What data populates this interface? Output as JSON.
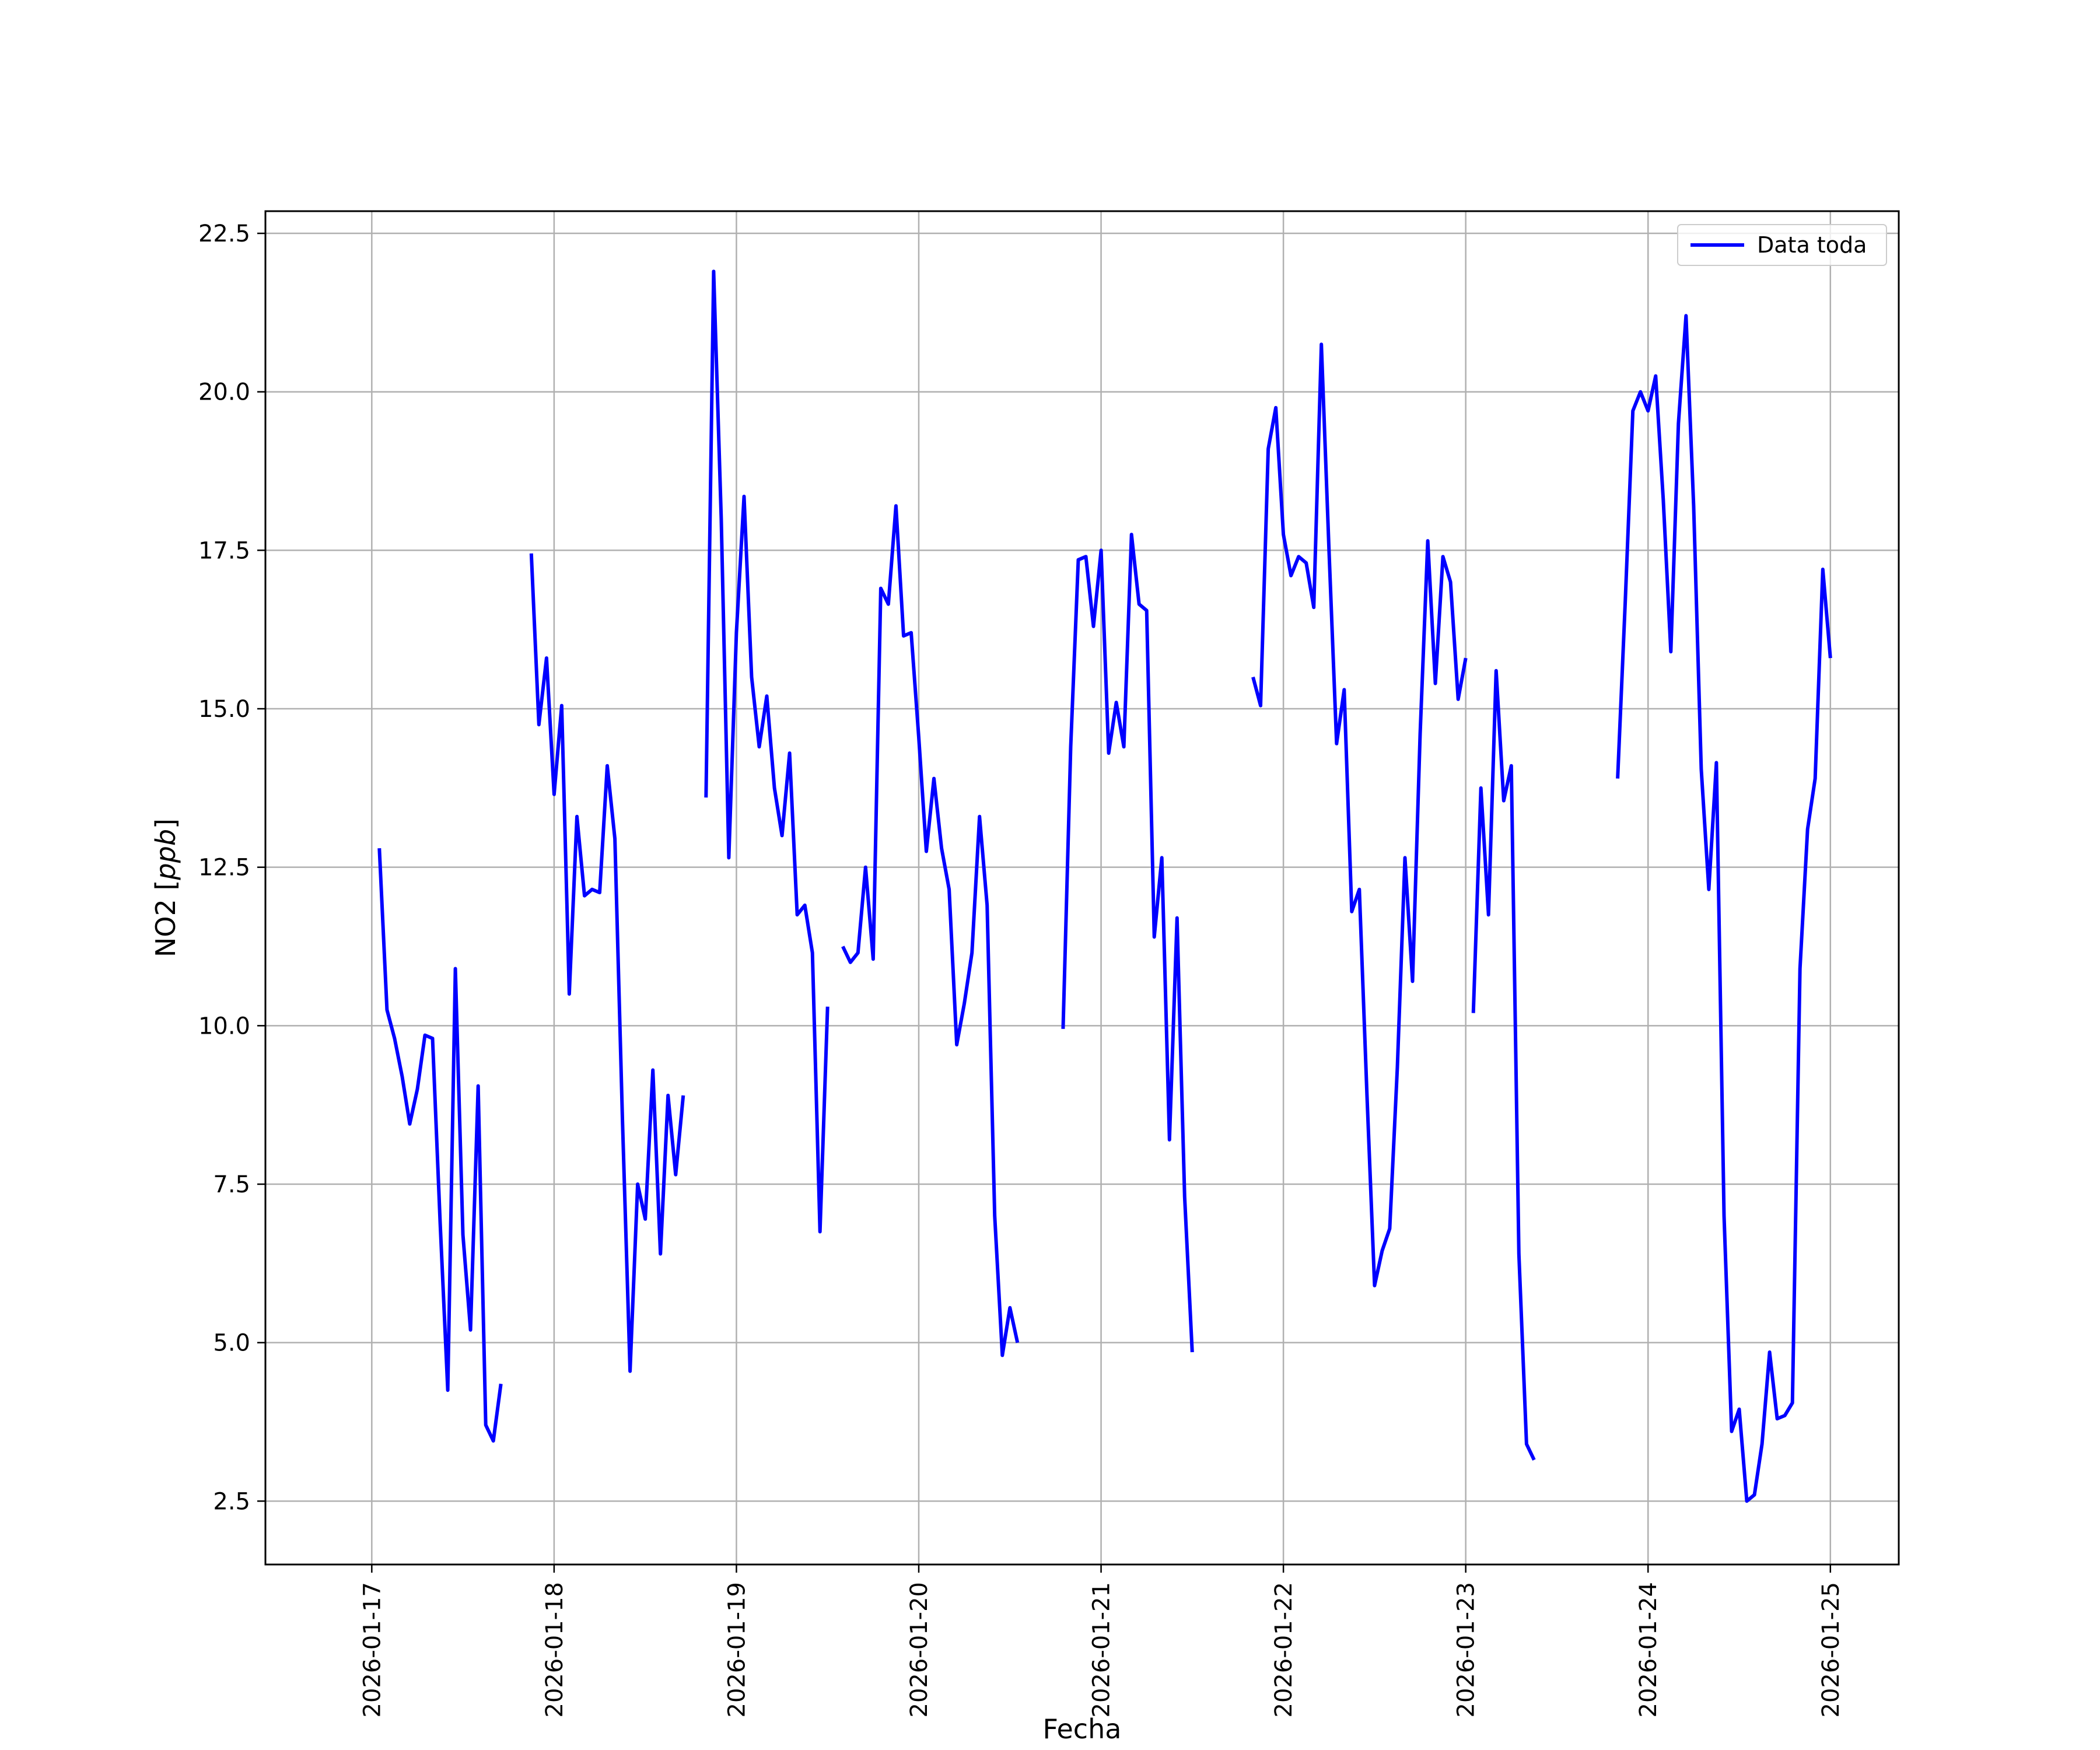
{
  "chart_data": {
    "type": "line",
    "xlabel": "Fecha",
    "ylabel_main": "NO2 [",
    "ylabel_unit": "ppb",
    "ylabel_close": "]",
    "xlim": [
      "2026-01-16T10:00",
      "2026-01-25T09:00"
    ],
    "ylim": [
      1.5,
      22.85
    ],
    "x_ticks": [
      "2026-01-17",
      "2026-01-18",
      "2026-01-19",
      "2026-01-20",
      "2026-01-21",
      "2026-01-22",
      "2026-01-23",
      "2026-01-24",
      "2026-01-25"
    ],
    "y_ticks": [
      2.5,
      5.0,
      7.5,
      10.0,
      12.5,
      15.0,
      17.5,
      20.0,
      22.5
    ],
    "y_tick_labels": [
      "2.5",
      "5.0",
      "7.5",
      "10.0",
      "12.5",
      "15.0",
      "17.5",
      "20.0",
      "22.5"
    ],
    "grid": true,
    "legend_position": "top-right",
    "colors": {
      "series": "#0000ff",
      "grid": "#b0b0b0",
      "axes": "#000000"
    },
    "series": [
      {
        "name": "Data toda",
        "segments": [
          [
            [
              "2026-01-17T01:00",
              12.8
            ],
            [
              "2026-01-17T02:00",
              10.25
            ],
            [
              "2026-01-17T03:00",
              9.8
            ],
            [
              "2026-01-17T04:00",
              9.2
            ],
            [
              "2026-01-17T05:00",
              8.45
            ],
            [
              "2026-01-17T06:00",
              9.0
            ],
            [
              "2026-01-17T07:00",
              9.85
            ],
            [
              "2026-01-17T08:00",
              9.8
            ],
            [
              "2026-01-17T09:00",
              6.9
            ],
            [
              "2026-01-17T10:00",
              4.25
            ],
            [
              "2026-01-17T11:00",
              10.9
            ],
            [
              "2026-01-17T12:00",
              6.7
            ],
            [
              "2026-01-17T13:00",
              5.2
            ],
            [
              "2026-01-17T14:00",
              9.05
            ],
            [
              "2026-01-17T15:00",
              3.7
            ],
            [
              "2026-01-17T16:00",
              3.45
            ],
            [
              "2026-01-17T17:00",
              4.35
            ]
          ],
          [
            [
              "2026-01-17T21:00",
              17.45
            ],
            [
              "2026-01-17T22:00",
              14.75
            ],
            [
              "2026-01-17T23:00",
              15.8
            ],
            [
              "2026-01-18T00:00",
              13.65
            ],
            [
              "2026-01-18T01:00",
              15.05
            ],
            [
              "2026-01-18T02:00",
              10.5
            ],
            [
              "2026-01-18T03:00",
              13.3
            ],
            [
              "2026-01-18T04:00",
              12.05
            ],
            [
              "2026-01-18T05:00",
              12.15
            ],
            [
              "2026-01-18T06:00",
              12.1
            ],
            [
              "2026-01-18T07:00",
              14.1
            ],
            [
              "2026-01-18T08:00",
              12.95
            ],
            [
              "2026-01-18T09:00",
              8.5
            ],
            [
              "2026-01-18T10:00",
              4.55
            ],
            [
              "2026-01-18T11:00",
              7.5
            ],
            [
              "2026-01-18T12:00",
              6.95
            ],
            [
              "2026-01-18T13:00",
              9.3
            ],
            [
              "2026-01-18T14:00",
              6.4
            ],
            [
              "2026-01-18T15:00",
              8.9
            ],
            [
              "2026-01-18T16:00",
              7.65
            ],
            [
              "2026-01-18T17:00",
              8.9
            ]
          ],
          [
            [
              "2026-01-18T20:00",
              13.6
            ],
            [
              "2026-01-18T21:00",
              21.9
            ],
            [
              "2026-01-18T22:00",
              18.0
            ],
            [
              "2026-01-18T23:00",
              12.65
            ],
            [
              "2026-01-19T00:00",
              16.2
            ],
            [
              "2026-01-19T01:00",
              18.35
            ],
            [
              "2026-01-19T02:00",
              15.5
            ],
            [
              "2026-01-19T03:00",
              14.4
            ],
            [
              "2026-01-19T04:00",
              15.2
            ],
            [
              "2026-01-19T05:00",
              13.75
            ],
            [
              "2026-01-19T06:00",
              13.0
            ],
            [
              "2026-01-19T07:00",
              14.3
            ],
            [
              "2026-01-19T08:00",
              11.75
            ],
            [
              "2026-01-19T09:00",
              11.9
            ],
            [
              "2026-01-19T10:00",
              11.15
            ],
            [
              "2026-01-19T11:00",
              6.75
            ],
            [
              "2026-01-19T12:00",
              10.3
            ]
          ],
          [
            [
              "2026-01-19T14:00",
              11.25
            ],
            [
              "2026-01-19T15:00",
              11.0
            ],
            [
              "2026-01-19T16:00",
              11.15
            ],
            [
              "2026-01-19T17:00",
              12.5
            ],
            [
              "2026-01-19T18:00",
              11.05
            ],
            [
              "2026-01-19T19:00",
              16.9
            ],
            [
              "2026-01-19T20:00",
              16.65
            ],
            [
              "2026-01-19T21:00",
              18.2
            ],
            [
              "2026-01-19T22:00",
              16.15
            ],
            [
              "2026-01-19T23:00",
              16.2
            ],
            [
              "2026-01-20T00:00",
              14.55
            ],
            [
              "2026-01-20T01:00",
              12.75
            ],
            [
              "2026-01-20T02:00",
              13.9
            ],
            [
              "2026-01-20T03:00",
              12.8
            ],
            [
              "2026-01-20T04:00",
              12.15
            ],
            [
              "2026-01-20T05:00",
              9.7
            ],
            [
              "2026-01-20T06:00",
              10.35
            ],
            [
              "2026-01-20T07:00",
              11.15
            ],
            [
              "2026-01-20T08:00",
              13.3
            ],
            [
              "2026-01-20T09:00",
              11.9
            ],
            [
              "2026-01-20T10:00",
              7.0
            ],
            [
              "2026-01-20T11:00",
              4.8
            ],
            [
              "2026-01-20T12:00",
              5.55
            ],
            [
              "2026-01-20T13:00",
              5.0
            ]
          ],
          [
            [
              "2026-01-20T19:00",
              9.95
            ],
            [
              "2026-01-20T20:00",
              14.4
            ],
            [
              "2026-01-20T21:00",
              17.35
            ],
            [
              "2026-01-20T22:00",
              17.4
            ],
            [
              "2026-01-20T23:00",
              16.3
            ],
            [
              "2026-01-21T00:00",
              17.5
            ],
            [
              "2026-01-21T01:00",
              14.3
            ],
            [
              "2026-01-21T02:00",
              15.1
            ],
            [
              "2026-01-21T03:00",
              14.4
            ],
            [
              "2026-01-21T04:00",
              17.75
            ],
            [
              "2026-01-21T05:00",
              16.65
            ],
            [
              "2026-01-21T06:00",
              16.55
            ],
            [
              "2026-01-21T07:00",
              11.4
            ],
            [
              "2026-01-21T08:00",
              12.65
            ],
            [
              "2026-01-21T09:00",
              8.2
            ],
            [
              "2026-01-21T10:00",
              11.7
            ],
            [
              "2026-01-21T11:00",
              7.3
            ],
            [
              "2026-01-21T12:00",
              4.85
            ]
          ],
          [
            [
              "2026-01-21T20:00",
              15.5
            ],
            [
              "2026-01-21T21:00",
              15.05
            ],
            [
              "2026-01-21T22:00",
              19.1
            ],
            [
              "2026-01-21T23:00",
              19.75
            ],
            [
              "2026-01-22T00:00",
              17.75
            ],
            [
              "2026-01-22T01:00",
              17.1
            ],
            [
              "2026-01-22T02:00",
              17.4
            ],
            [
              "2026-01-22T03:00",
              17.3
            ],
            [
              "2026-01-22T04:00",
              16.6
            ],
            [
              "2026-01-22T05:00",
              20.75
            ],
            [
              "2026-01-22T06:00",
              17.5
            ],
            [
              "2026-01-22T07:00",
              14.45
            ],
            [
              "2026-01-22T08:00",
              15.3
            ],
            [
              "2026-01-22T09:00",
              11.8
            ],
            [
              "2026-01-22T10:00",
              12.15
            ],
            [
              "2026-01-22T11:00",
              8.9
            ],
            [
              "2026-01-22T12:00",
              5.9
            ],
            [
              "2026-01-22T13:00",
              6.45
            ],
            [
              "2026-01-22T14:00",
              6.8
            ],
            [
              "2026-01-22T15:00",
              9.35
            ],
            [
              "2026-01-22T16:00",
              12.65
            ],
            [
              "2026-01-22T17:00",
              10.7
            ],
            [
              "2026-01-22T18:00",
              14.6
            ],
            [
              "2026-01-22T19:00",
              17.65
            ],
            [
              "2026-01-22T20:00",
              15.4
            ],
            [
              "2026-01-22T21:00",
              17.4
            ],
            [
              "2026-01-22T22:00",
              17.0
            ],
            [
              "2026-01-22T23:00",
              15.15
            ],
            [
              "2026-01-23T00:00",
              15.8
            ]
          ],
          [
            [
              "2026-01-23T01:00",
              10.2
            ],
            [
              "2026-01-23T02:00",
              13.75
            ],
            [
              "2026-01-23T03:00",
              11.75
            ],
            [
              "2026-01-23T04:00",
              15.6
            ],
            [
              "2026-01-23T05:00",
              13.55
            ],
            [
              "2026-01-23T06:00",
              14.1
            ],
            [
              "2026-01-23T07:00",
              6.4
            ],
            [
              "2026-01-23T08:00",
              3.4
            ],
            [
              "2026-01-23T09:00",
              3.15
            ]
          ],
          [
            [
              "2026-01-23T20:00",
              13.9
            ],
            [
              "2026-01-23T21:00",
              16.7
            ],
            [
              "2026-01-23T22:00",
              19.7
            ],
            [
              "2026-01-23T23:00",
              20.0
            ],
            [
              "2026-01-24T00:00",
              19.7
            ],
            [
              "2026-01-24T01:00",
              20.25
            ],
            [
              "2026-01-24T02:00",
              18.3
            ],
            [
              "2026-01-24T03:00",
              15.9
            ],
            [
              "2026-01-24T04:00",
              19.5
            ],
            [
              "2026-01-24T05:00",
              21.2
            ],
            [
              "2026-01-24T06:00",
              18.2
            ],
            [
              "2026-01-24T07:00",
              14.05
            ],
            [
              "2026-01-24T08:00",
              12.15
            ],
            [
              "2026-01-24T09:00",
              14.15
            ],
            [
              "2026-01-24T10:00",
              7.0
            ],
            [
              "2026-01-24T11:00",
              3.6
            ],
            [
              "2026-01-24T12:00",
              3.95
            ],
            [
              "2026-01-24T13:00",
              2.5
            ],
            [
              "2026-01-24T14:00",
              2.6
            ],
            [
              "2026-01-24T15:00",
              3.4
            ],
            [
              "2026-01-24T16:00",
              4.85
            ],
            [
              "2026-01-24T17:00",
              3.8
            ],
            [
              "2026-01-24T18:00",
              3.85
            ],
            [
              "2026-01-24T19:00",
              4.05
            ],
            [
              "2026-01-24T20:00",
              10.9
            ],
            [
              "2026-01-24T21:00",
              13.1
            ],
            [
              "2026-01-24T22:00",
              13.9
            ],
            [
              "2026-01-24T23:00",
              17.2
            ],
            [
              "2026-01-25T00:00",
              15.8
            ]
          ]
        ]
      }
    ]
  }
}
